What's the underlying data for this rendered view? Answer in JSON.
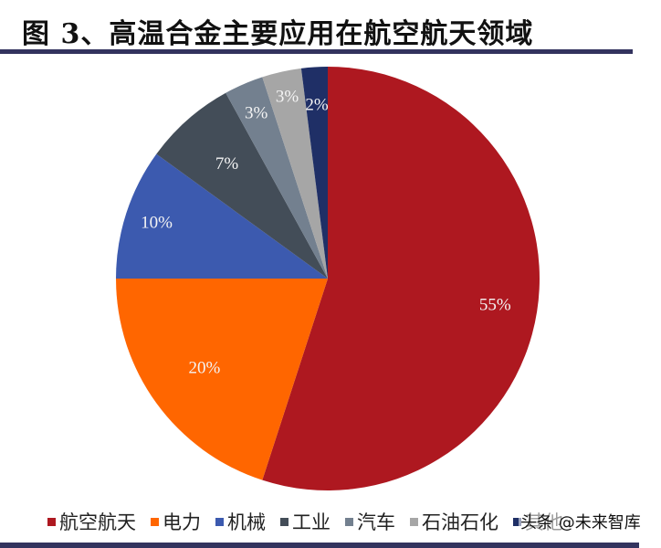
{
  "title": "图 3、高温合金主要应用在航空航天领域",
  "watermark": "头条 @未来智库",
  "chart_data": {
    "type": "pie",
    "title": "图 3、高温合金主要应用在航空航天领域",
    "start_angle": "12 o'clock",
    "direction": "clockwise",
    "labels": [
      "航空航天",
      "电力",
      "机械",
      "工业",
      "汽车",
      "石油石化",
      "其他"
    ],
    "values": [
      55,
      20,
      10,
      7,
      3,
      3,
      2
    ],
    "value_labels": [
      "55%",
      "20%",
      "10%",
      "7%",
      "3%",
      "3%",
      "2%"
    ],
    "colors": [
      "#ae1820",
      "#ff6600",
      "#3c5aaf",
      "#434d58",
      "#73808f",
      "#a6a6a6",
      "#1f2f66"
    ],
    "legend_position": "bottom"
  },
  "legend": {
    "items": [
      {
        "label": "航空航天",
        "color": "#ae1820"
      },
      {
        "label": "电力",
        "color": "#ff6600"
      },
      {
        "label": "机械",
        "color": "#3c5aaf"
      },
      {
        "label": "工业",
        "color": "#434d58"
      },
      {
        "label": "汽车",
        "color": "#73808f"
      },
      {
        "label": "石油石化",
        "color": "#a6a6a6"
      },
      {
        "label": "其他",
        "color": "#1f2f66"
      }
    ]
  }
}
